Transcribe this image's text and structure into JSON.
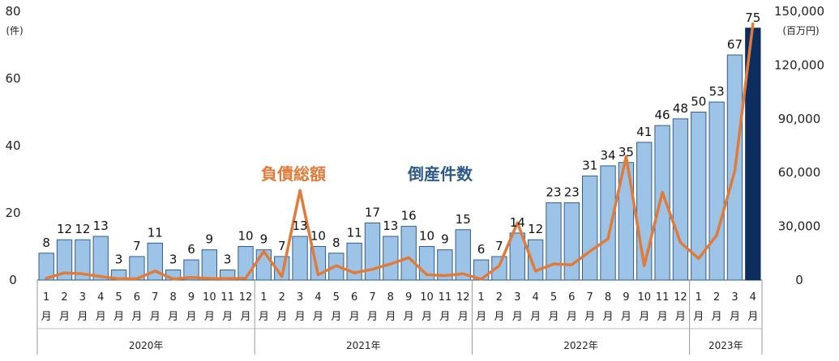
{
  "chart_data": {
    "type": "bar",
    "y_left": {
      "ticks": [
        "0",
        "20",
        "40",
        "60",
        "80"
      ],
      "unit": "(件)",
      "ylim": [
        0,
        80
      ]
    },
    "y_right": {
      "ticks": [
        "0",
        "30,000",
        "60,000",
        "90,000",
        "120,000",
        "150,000"
      ],
      "unit": "(百万円)",
      "ylim": [
        0,
        150000
      ]
    },
    "month_char": "月",
    "years": [
      {
        "label": "2020年",
        "months": [
          "1",
          "2",
          "3",
          "4",
          "5",
          "6",
          "7",
          "8",
          "9",
          "10",
          "11",
          "12"
        ]
      },
      {
        "label": "2021年",
        "months": [
          "1",
          "2",
          "3",
          "4",
          "5",
          "6",
          "7",
          "8",
          "9",
          "10",
          "11",
          "12"
        ]
      },
      {
        "label": "2022年",
        "months": [
          "1",
          "2",
          "3",
          "4",
          "5",
          "6",
          "7",
          "8",
          "9",
          "10",
          "11",
          "12"
        ]
      },
      {
        "label": "2023年",
        "months": [
          "1",
          "2",
          "3",
          "4"
        ]
      }
    ],
    "series": [
      {
        "name": "倒産件数",
        "type": "bar",
        "color": "#9dc3e6",
        "highlight_color": "#0d2d5e",
        "highlight_last": true,
        "values": [
          8,
          12,
          12,
          13,
          3,
          7,
          11,
          3,
          6,
          9,
          3,
          10,
          9,
          7,
          13,
          10,
          8,
          11,
          17,
          13,
          16,
          10,
          9,
          15,
          6,
          7,
          14,
          12,
          23,
          23,
          31,
          34,
          35,
          41,
          46,
          48,
          50,
          53,
          67,
          75
        ],
        "labels": [
          "8",
          "12",
          "12",
          "13",
          "3",
          "7",
          "11",
          "3",
          "6",
          "9",
          "3",
          "10",
          "9",
          "7",
          "13",
          "10",
          "8",
          "11",
          "17",
          "13",
          "16",
          "10",
          "9",
          "15",
          "6",
          "7",
          "14",
          "12",
          "23",
          "23",
          "31",
          "34",
          "35",
          "41",
          "46",
          "48",
          "50",
          "53",
          "67",
          "75"
        ]
      },
      {
        "name": "負債総額",
        "type": "line",
        "axis": "right",
        "color": "#e07b39",
        "values": [
          1000,
          4000,
          3500,
          2000,
          700,
          800,
          5000,
          600,
          1500,
          900,
          800,
          1000,
          16000,
          2000,
          50000,
          3000,
          8000,
          4000,
          6000,
          9000,
          12500,
          3000,
          2500,
          3500,
          500,
          8000,
          32000,
          5000,
          9000,
          8500,
          16000,
          23000,
          69000,
          8000,
          49000,
          21000,
          12000,
          25000,
          61000,
          143000
        ]
      }
    ]
  }
}
